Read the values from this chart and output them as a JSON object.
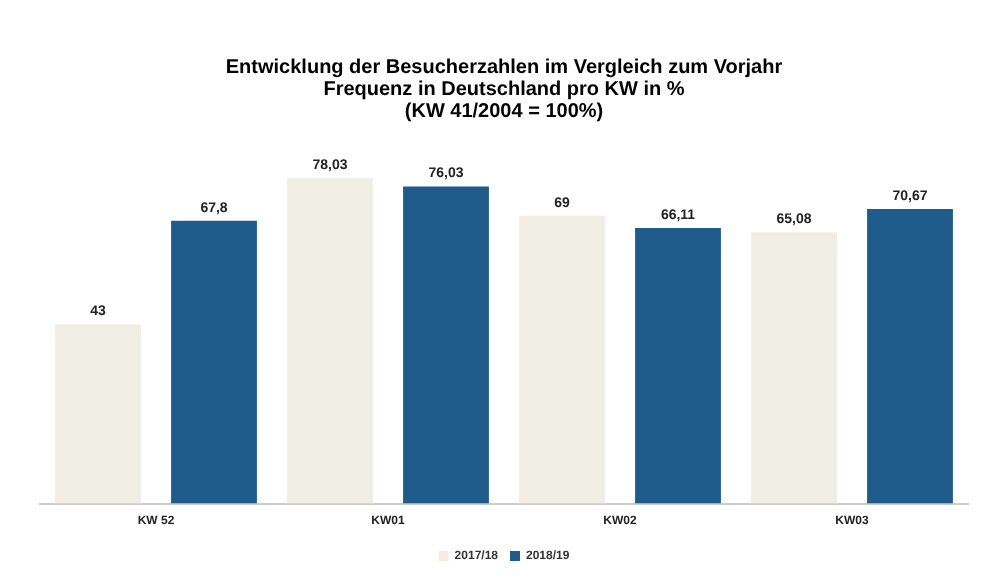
{
  "chart_data": {
    "type": "bar",
    "title": "Entwicklung der Besucherzahlen im Vergleich zum Vorjahr\nFrequenz in Deutschland pro KW in %\n(KW 41/2004 = 100%)",
    "categories": [
      "KW 52",
      "KW01",
      "KW02",
      "KW03"
    ],
    "series": [
      {
        "name": "2017/18",
        "color": "#f0ede5",
        "values": [
          43,
          78.03,
          69,
          65.08
        ],
        "value_labels": [
          "43",
          "78,03",
          "69",
          "65,08"
        ]
      },
      {
        "name": "2018/19",
        "color": "#1f5c8b",
        "values": [
          67.8,
          76.03,
          66.11,
          70.67
        ],
        "value_labels": [
          "67,8",
          "76,03",
          "66,11",
          "70,67"
        ]
      }
    ],
    "legend": "bottom",
    "grid": false,
    "tick_labels": "x"
  }
}
